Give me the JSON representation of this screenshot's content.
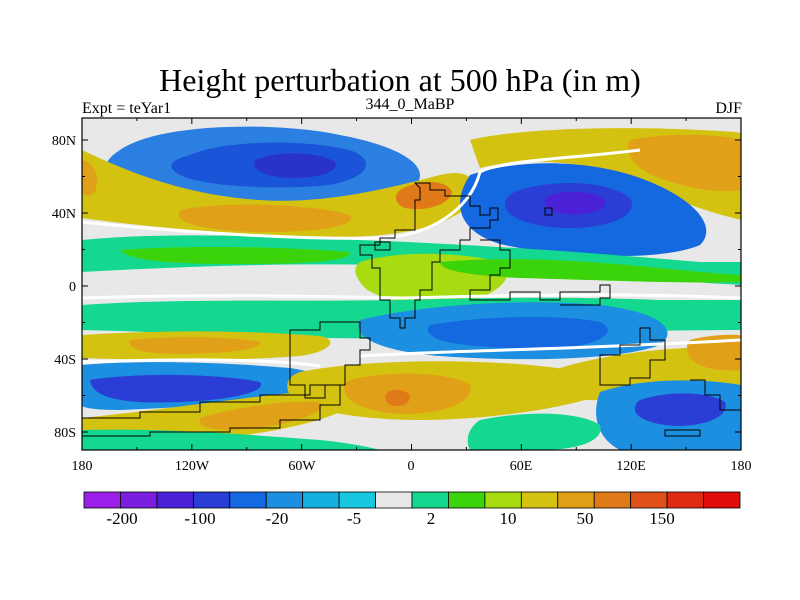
{
  "title": "Height perturbation at 500 hPa (in m)",
  "subtitle_left": "Expt = teYar1",
  "subtitle_center": "344_0_MaBP",
  "subtitle_right": "DJF",
  "lat_ticks": [
    "80N",
    "40N",
    "0",
    "40S",
    "80S"
  ],
  "lon_ticks": [
    "180",
    "120W",
    "60W",
    "0",
    "60E",
    "120E",
    "180"
  ],
  "colorbar": {
    "labels": [
      "-200",
      "-100",
      "-20",
      "-5",
      "2",
      "10",
      "50",
      "150"
    ],
    "colors": [
      "#9b1fe8",
      "#7a1ee0",
      "#4b21d8",
      "#2a3ed6",
      "#1468e0",
      "#1c8fe0",
      "#15b0e0",
      "#17c8e0",
      "#e8e8e8",
      "#14d890",
      "#3bd40a",
      "#a8dc10",
      "#d4c210",
      "#e0a018",
      "#e07a18",
      "#e05018",
      "#e02a14",
      "#e00c0c"
    ]
  }
}
